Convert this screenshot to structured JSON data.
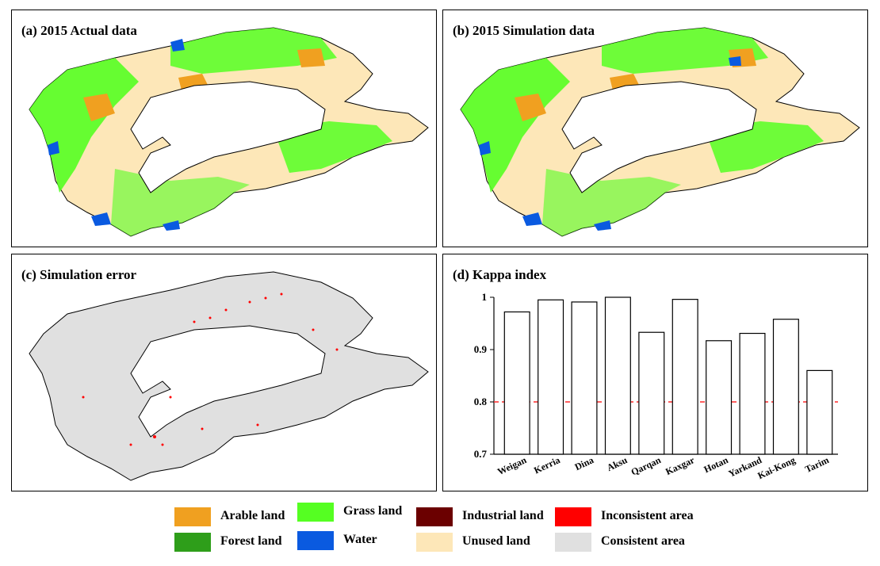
{
  "panels": {
    "a_title": "(a) 2015 Actual data",
    "b_title": "(b) 2015 Simulation data",
    "c_title": "(c) Simulation error",
    "d_title": "(d) Kappa index"
  },
  "legend": [
    {
      "label": "Arable land",
      "color": "#f0a020"
    },
    {
      "label": "Grass land",
      "color": "#55ff22"
    },
    {
      "label": "Industrial land",
      "color": "#6b0000"
    },
    {
      "label": "Inconsistent area",
      "color": "#ff0000"
    },
    {
      "label": "Forest land",
      "color": "#2e9e1a"
    },
    {
      "label": "Water",
      "color": "#0a5ae0"
    },
    {
      "label": "Unused land",
      "color": "#fde7b8"
    },
    {
      "label": "Consistent area",
      "color": "#e0e0e0"
    }
  ],
  "chart_data": {
    "type": "bar",
    "title": "(d) Kappa index",
    "categories": [
      "Weigan",
      "Kerria",
      "Dina",
      "Aksu",
      "Qarqan",
      "Kaxgar",
      "Hotan",
      "Yarkand",
      "Kai-Kong",
      "Tarim"
    ],
    "values": [
      0.972,
      0.995,
      0.991,
      1.0,
      0.933,
      0.996,
      0.917,
      0.931,
      0.958,
      0.86
    ],
    "ylim": [
      0.7,
      1.0
    ],
    "yticks": [
      "0.7",
      "0.8",
      "0.9",
      "1"
    ],
    "ytick_values": [
      0.7,
      0.8,
      0.9,
      1.0
    ],
    "reference_line": 0.8,
    "reference_line_color": "#ff2a2a",
    "bar_fill": "#ffffff",
    "bar_edge": "#000000",
    "grid": false
  },
  "colors": {
    "arable": "#f0a020",
    "grass": "#55ff22",
    "forest": "#2e9e1a",
    "water": "#0a5ae0",
    "unused": "#fde7b8",
    "consistent": "#e0e0e0",
    "inconsistent": "#ff0000"
  }
}
